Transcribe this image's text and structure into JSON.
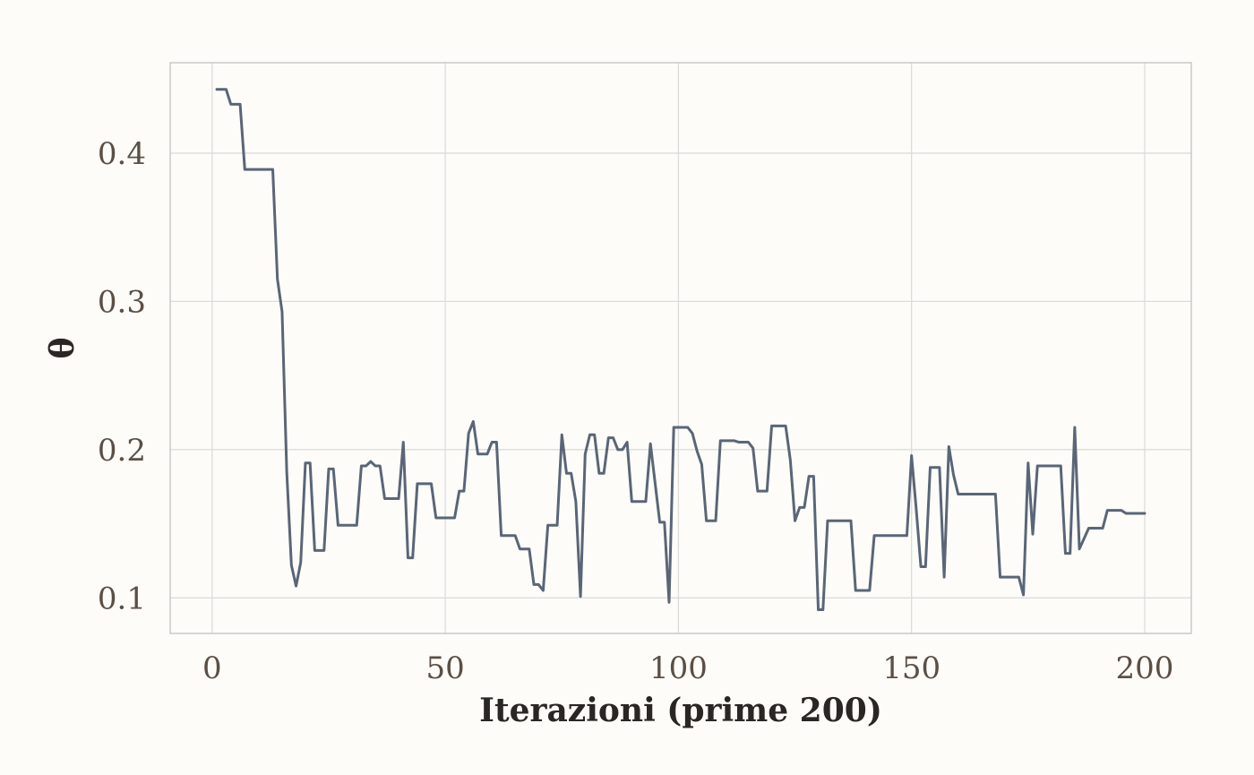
{
  "chart_data": {
    "type": "line",
    "xlabel": "Iterazioni (prime 200)",
    "ylabel": "θ",
    "xlim": [
      -9,
      210
    ],
    "ylim": [
      0.076,
      0.461
    ],
    "x_ticks": [
      0,
      50,
      100,
      150,
      200
    ],
    "x_tick_labels": [
      "0",
      "50",
      "100",
      "150",
      "200"
    ],
    "y_ticks": [
      0.1,
      0.2,
      0.3,
      0.4
    ],
    "y_tick_labels": [
      "0.1",
      "0.2",
      "0.3",
      "0.4"
    ],
    "grid": true,
    "colors": {
      "line": "#5a6677",
      "background": "#fdfcf9",
      "grid": "#dcdcdc",
      "frame": "#c9c9c9"
    },
    "series": [
      {
        "points": [
          [
            1,
            0.443
          ],
          [
            3,
            0.443
          ],
          [
            4,
            0.433
          ],
          [
            6,
            0.433
          ],
          [
            7,
            0.389
          ],
          [
            13,
            0.389
          ],
          [
            14,
            0.315
          ],
          [
            15,
            0.293
          ],
          [
            16,
            0.185
          ],
          [
            17,
            0.122
          ],
          [
            18,
            0.108
          ],
          [
            19,
            0.124
          ],
          [
            20,
            0.191
          ],
          [
            21,
            0.191
          ],
          [
            22,
            0.132
          ],
          [
            24,
            0.132
          ],
          [
            25,
            0.187
          ],
          [
            26,
            0.187
          ],
          [
            27,
            0.149
          ],
          [
            31,
            0.149
          ],
          [
            32,
            0.189
          ],
          [
            33,
            0.189
          ],
          [
            34,
            0.192
          ],
          [
            35,
            0.189
          ],
          [
            36,
            0.189
          ],
          [
            37,
            0.167
          ],
          [
            40,
            0.167
          ],
          [
            41,
            0.205
          ],
          [
            42,
            0.127
          ],
          [
            43,
            0.127
          ],
          [
            44,
            0.177
          ],
          [
            47,
            0.177
          ],
          [
            48,
            0.154
          ],
          [
            52,
            0.154
          ],
          [
            53,
            0.172
          ],
          [
            54,
            0.172
          ],
          [
            55,
            0.211
          ],
          [
            56,
            0.219
          ],
          [
            57,
            0.197
          ],
          [
            59,
            0.197
          ],
          [
            60,
            0.205
          ],
          [
            61,
            0.205
          ],
          [
            62,
            0.142
          ],
          [
            65,
            0.142
          ],
          [
            66,
            0.133
          ],
          [
            68,
            0.133
          ],
          [
            69,
            0.109
          ],
          [
            70,
            0.109
          ],
          [
            71,
            0.105
          ],
          [
            72,
            0.149
          ],
          [
            74,
            0.149
          ],
          [
            75,
            0.21
          ],
          [
            76,
            0.184
          ],
          [
            77,
            0.184
          ],
          [
            78,
            0.165
          ],
          [
            79,
            0.101
          ],
          [
            80,
            0.197
          ],
          [
            81,
            0.21
          ],
          [
            82,
            0.21
          ],
          [
            83,
            0.184
          ],
          [
            84,
            0.184
          ],
          [
            85,
            0.208
          ],
          [
            86,
            0.208
          ],
          [
            87,
            0.2
          ],
          [
            88,
            0.2
          ],
          [
            89,
            0.205
          ],
          [
            90,
            0.165
          ],
          [
            93,
            0.165
          ],
          [
            94,
            0.204
          ],
          [
            96,
            0.151
          ],
          [
            97,
            0.151
          ],
          [
            98,
            0.097
          ],
          [
            99,
            0.215
          ],
          [
            102,
            0.215
          ],
          [
            103,
            0.211
          ],
          [
            104,
            0.199
          ],
          [
            105,
            0.19
          ],
          [
            106,
            0.152
          ],
          [
            108,
            0.152
          ],
          [
            109,
            0.206
          ],
          [
            112,
            0.206
          ],
          [
            113,
            0.205
          ],
          [
            115,
            0.205
          ],
          [
            116,
            0.201
          ],
          [
            117,
            0.172
          ],
          [
            119,
            0.172
          ],
          [
            120,
            0.216
          ],
          [
            123,
            0.216
          ],
          [
            124,
            0.193
          ],
          [
            125,
            0.152
          ],
          [
            126,
            0.161
          ],
          [
            127,
            0.161
          ],
          [
            128,
            0.182
          ],
          [
            129,
            0.182
          ],
          [
            130,
            0.092
          ],
          [
            131,
            0.092
          ],
          [
            132,
            0.152
          ],
          [
            137,
            0.152
          ],
          [
            138,
            0.105
          ],
          [
            139,
            0.105
          ],
          [
            141,
            0.105
          ],
          [
            142,
            0.142
          ],
          [
            149,
            0.142
          ],
          [
            150,
            0.196
          ],
          [
            151,
            0.16
          ],
          [
            152,
            0.121
          ],
          [
            153,
            0.121
          ],
          [
            154,
            0.188
          ],
          [
            156,
            0.188
          ],
          [
            157,
            0.114
          ],
          [
            158,
            0.202
          ],
          [
            159,
            0.183
          ],
          [
            160,
            0.17
          ],
          [
            168,
            0.17
          ],
          [
            169,
            0.114
          ],
          [
            173,
            0.114
          ],
          [
            174,
            0.102
          ],
          [
            175,
            0.191
          ],
          [
            176,
            0.143
          ],
          [
            177,
            0.189
          ],
          [
            182,
            0.189
          ],
          [
            183,
            0.13
          ],
          [
            184,
            0.13
          ],
          [
            185,
            0.215
          ],
          [
            186,
            0.133
          ],
          [
            188,
            0.147
          ],
          [
            191,
            0.147
          ],
          [
            192,
            0.159
          ],
          [
            195,
            0.159
          ],
          [
            196,
            0.157
          ],
          [
            200,
            0.157
          ]
        ]
      }
    ]
  }
}
